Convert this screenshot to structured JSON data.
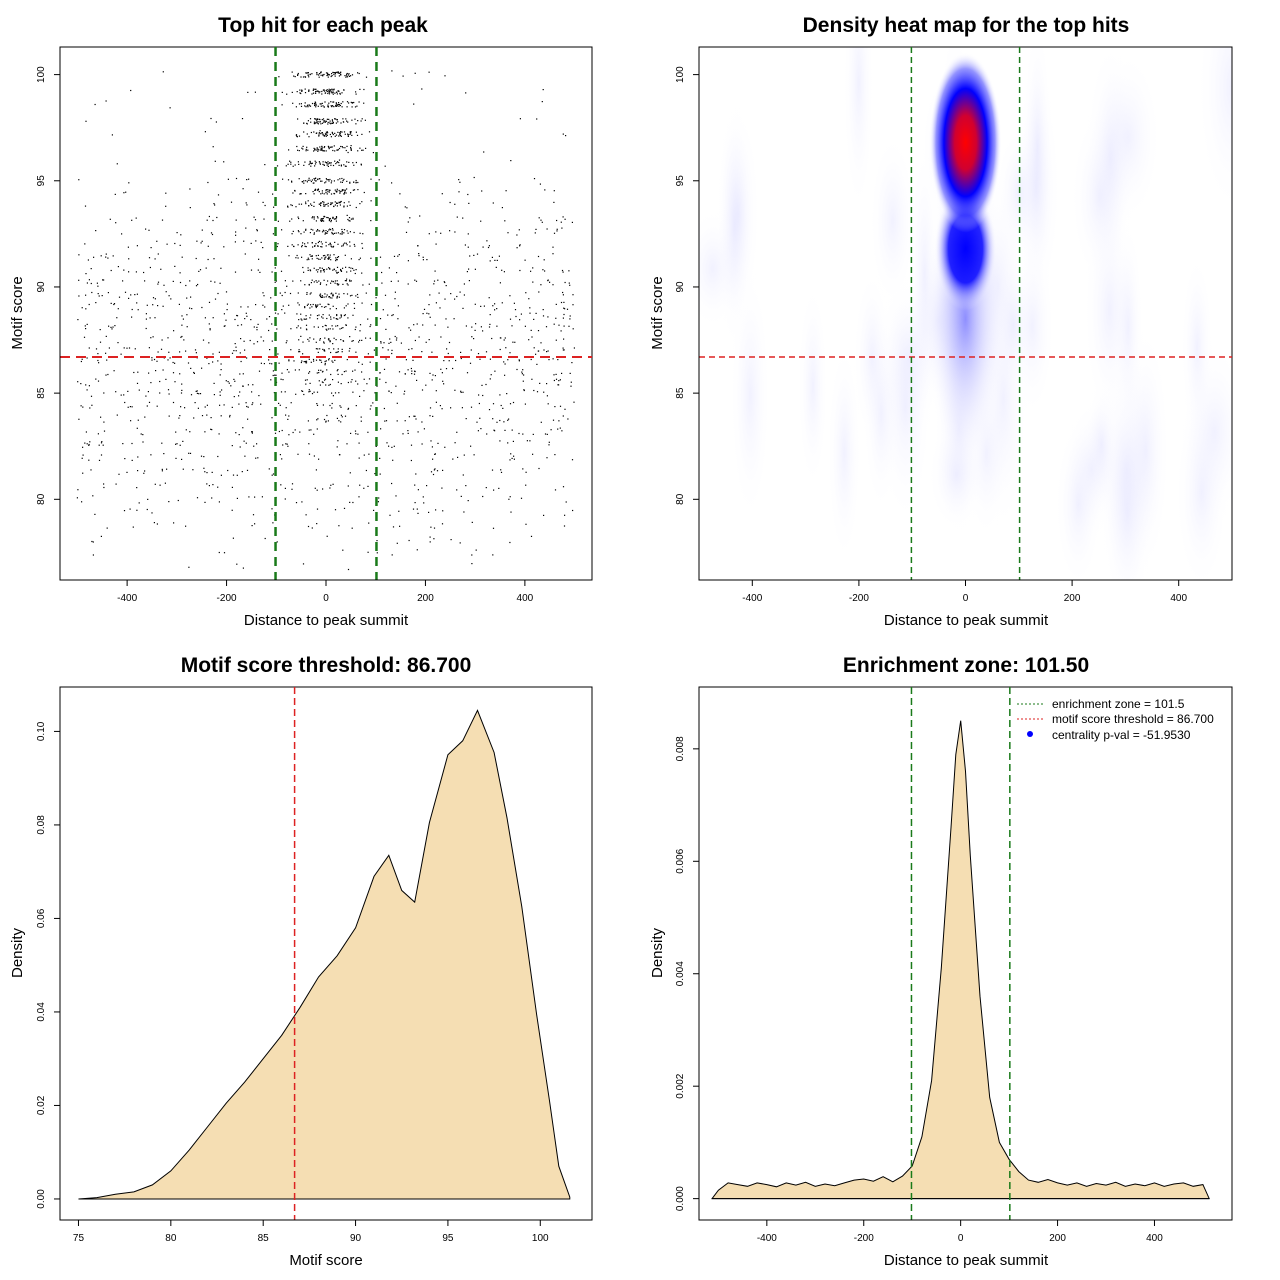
{
  "colors": {
    "threshold_line": "#dd2222",
    "zone_line": "#1a7a1a",
    "density_fill": "#f5deb3",
    "centrality_point": "#0000ff",
    "heat_low": "#ffffff",
    "heat_mid": "#0000ff",
    "heat_high": "#ff0000"
  },
  "chart_data": [
    {
      "type": "scatter",
      "title": "Top hit for each peak",
      "xlabel": "Distance to peak summit",
      "ylabel": "Motif score",
      "xlim": [
        -535,
        535
      ],
      "ylim": [
        76.2,
        101.3
      ],
      "xticks": [
        -400,
        -200,
        0,
        200,
        400
      ],
      "xtick_labels": [
        "-400",
        "-200",
        "0",
        "200",
        "400"
      ],
      "yticks": [
        80,
        85,
        90,
        95,
        100
      ],
      "ytick_labels": [
        "80",
        "85",
        "90",
        "95",
        "100"
      ],
      "score_levels": [
        100,
        99.2,
        98.6,
        97.8,
        97.2,
        96.5,
        95.8,
        95.0,
        94.5,
        93.9,
        93.2,
        92.6,
        92.0,
        91.4,
        90.8,
        90.2,
        89.6,
        89.1,
        88.6,
        88.1,
        87.5,
        87.0,
        86.5,
        86.0,
        85.5,
        85.0,
        84.4,
        83.8,
        83.2,
        82.6,
        82.0,
        81.3,
        80.6,
        80.0,
        79.4,
        78.8,
        78.1,
        77.5,
        76.8
      ],
      "distance_range": [
        -500,
        500
      ],
      "threshold": 86.7,
      "enrichment_zone": [
        -101.5,
        101.5
      ]
    },
    {
      "type": "heatmap",
      "title": "Density heat map for the top hits",
      "xlabel": "Distance to peak summit",
      "ylabel": "Motif score",
      "xlim": [
        -500,
        500
      ],
      "ylim": [
        76.2,
        101.3
      ],
      "xticks": [
        -400,
        -200,
        0,
        200,
        400
      ],
      "xtick_labels": [
        "-400",
        "-200",
        "0",
        "200",
        "400"
      ],
      "yticks": [
        80,
        85,
        90,
        95,
        100
      ],
      "ytick_labels": [
        "80",
        "85",
        "90",
        "95",
        "100"
      ],
      "peak": {
        "x": 0,
        "y": 96.8
      },
      "secondary_peak": {
        "x": 0,
        "y": 91.8
      },
      "threshold": 86.7,
      "enrichment_zone": [
        -101.5,
        101.5
      ]
    },
    {
      "type": "area",
      "title": "Motif score threshold: 86.700",
      "xlabel": "Motif score",
      "ylabel": "Density",
      "xlim": [
        74,
        102.8
      ],
      "ylim": [
        -0.0045,
        0.1095
      ],
      "xticks": [
        75,
        80,
        85,
        90,
        95,
        100
      ],
      "xtick_labels": [
        "75",
        "80",
        "85",
        "90",
        "95",
        "100"
      ],
      "yticks": [
        0,
        0.02,
        0.04,
        0.06,
        0.08,
        0.1
      ],
      "ytick_labels": [
        "0.00",
        "0.02",
        "0.04",
        "0.06",
        "0.08",
        "0.10"
      ],
      "x": [
        75,
        76,
        77,
        78,
        79,
        80,
        81,
        82,
        83,
        84,
        85,
        86,
        87,
        88,
        89,
        90,
        91,
        91.8,
        92.5,
        93.2,
        94,
        95,
        95.8,
        96.6,
        97.5,
        98.2,
        99,
        99.8,
        100.5,
        101,
        101.6
      ],
      "y": [
        0,
        0.0003,
        0.001,
        0.0015,
        0.003,
        0.006,
        0.0105,
        0.0155,
        0.0205,
        0.025,
        0.03,
        0.035,
        0.041,
        0.0475,
        0.052,
        0.058,
        0.069,
        0.0735,
        0.066,
        0.0635,
        0.0805,
        0.095,
        0.098,
        0.1045,
        0.0955,
        0.0815,
        0.0625,
        0.0395,
        0.021,
        0.007,
        0.0004
      ],
      "threshold": 86.7
    },
    {
      "type": "area",
      "title": "Enrichment zone: 101.50",
      "xlabel": "Distance to peak summit",
      "ylabel": "Density",
      "xlim": [
        -540,
        560
      ],
      "ylim": [
        -0.00038,
        0.0091
      ],
      "xticks": [
        -400,
        -200,
        0,
        200,
        400
      ],
      "xtick_labels": [
        "-400",
        "-200",
        "0",
        "200",
        "400"
      ],
      "yticks": [
        0,
        0.002,
        0.004,
        0.006,
        0.008
      ],
      "ytick_labels": [
        "0.000",
        "0.002",
        "0.004",
        "0.006",
        "0.008"
      ],
      "x": [
        -513,
        -500,
        -480,
        -460,
        -440,
        -420,
        -400,
        -380,
        -360,
        -340,
        -320,
        -300,
        -280,
        -260,
        -240,
        -220,
        -200,
        -180,
        -160,
        -140,
        -120,
        -100,
        -80,
        -60,
        -40,
        -20,
        -10,
        0,
        10,
        20,
        40,
        60,
        80,
        100,
        120,
        140,
        160,
        180,
        200,
        220,
        240,
        260,
        280,
        300,
        320,
        340,
        360,
        380,
        400,
        420,
        440,
        460,
        480,
        500,
        513
      ],
      "y": [
        0,
        0.00015,
        0.00028,
        0.00025,
        0.00022,
        0.00028,
        0.00025,
        0.00021,
        0.00028,
        0.00024,
        0.00029,
        0.00022,
        0.00026,
        0.00023,
        0.00028,
        0.00033,
        0.00035,
        0.00031,
        0.00039,
        0.0003,
        0.0004,
        0.00058,
        0.0011,
        0.0021,
        0.0041,
        0.0066,
        0.0079,
        0.0085,
        0.0076,
        0.0061,
        0.0036,
        0.0018,
        0.001,
        0.0007,
        0.00048,
        0.00033,
        0.00029,
        0.00034,
        0.00028,
        0.00024,
        0.00028,
        0.00022,
        0.00027,
        0.00024,
        0.00029,
        0.00022,
        0.00026,
        0.00023,
        0.00028,
        0.00022,
        0.00026,
        0.00028,
        0.00022,
        0.00025,
        0
      ],
      "enrichment_zone": [
        -101.5,
        101.5
      ],
      "legend": [
        {
          "label": "enrichment zone = 101.5",
          "style": "dotted-green"
        },
        {
          "label": "motif score threshold = 86.700",
          "style": "dotted-red"
        },
        {
          "label": "centrality p-val = -51.9530",
          "style": "blue-point"
        }
      ],
      "legend_position": "top-right"
    }
  ]
}
